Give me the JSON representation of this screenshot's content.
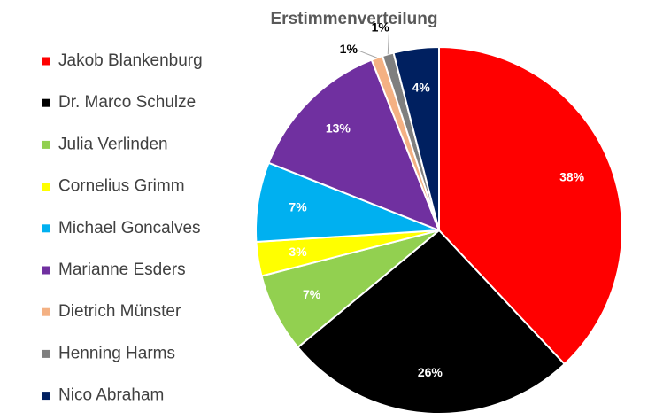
{
  "chart_data": {
    "type": "pie",
    "title": "Erstimmenverteilung",
    "categories": [
      "Jakob Blankenburg",
      "Dr. Marco Schulze",
      "Julia Verlinden",
      "Cornelius Grimm",
      "Michael Goncalves",
      "Marianne Esders",
      "Dietrich Münster",
      "Henning Harms",
      "Nico Abraham"
    ],
    "values": [
      38,
      26,
      7,
      3,
      7,
      13,
      1,
      1,
      4
    ],
    "value_labels": [
      "38%",
      "26%",
      "7%",
      "3%",
      "7%",
      "13%",
      "1%",
      "1%",
      "4%"
    ],
    "colors": [
      "#ff0000",
      "#000000",
      "#92d050",
      "#ffff00",
      "#00b0f0",
      "#7030a0",
      "#f4b183",
      "#7f7f7f",
      "#002060"
    ],
    "legend": "left"
  }
}
